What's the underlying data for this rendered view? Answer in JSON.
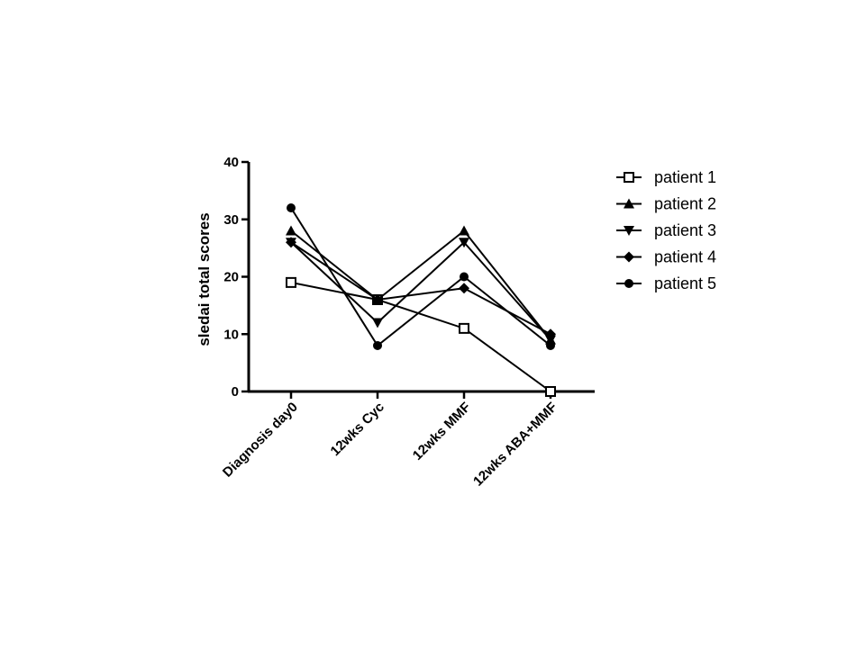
{
  "chart_data": {
    "type": "line",
    "title": "",
    "xlabel": "",
    "ylabel": "sledai total scores",
    "categories": [
      "Diagnosis day0",
      "12wks Cyc",
      "12wks MMF",
      "12wks ABA+MMF"
    ],
    "ylim": [
      0,
      40
    ],
    "yticks": [
      0,
      10,
      20,
      30,
      40
    ],
    "grid": false,
    "legend_position": "right",
    "series": [
      {
        "name": "patient 1",
        "marker": "square-open",
        "values": [
          19,
          16,
          11,
          0
        ]
      },
      {
        "name": "patient 2",
        "marker": "triangle-up",
        "values": [
          28,
          16,
          28,
          9
        ]
      },
      {
        "name": "patient 3",
        "marker": "triangle-down",
        "values": [
          26,
          12,
          26,
          9
        ]
      },
      {
        "name": "patient 4",
        "marker": "diamond",
        "values": [
          26,
          16,
          18,
          10
        ]
      },
      {
        "name": "patient 5",
        "marker": "circle",
        "values": [
          32,
          8,
          20,
          8
        ]
      }
    ],
    "colors": {
      "line": "#000000",
      "background": "#ffffff"
    }
  }
}
